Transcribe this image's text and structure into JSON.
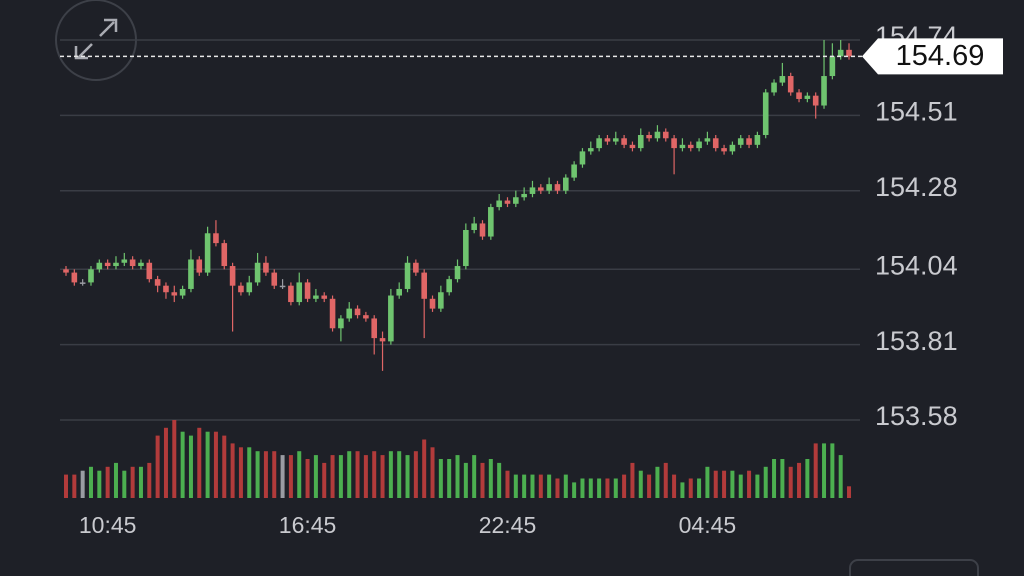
{
  "chart_data": {
    "type": "candlestick",
    "categories": [
      null,
      null,
      null,
      null,
      null,
      "10:45",
      null,
      null,
      null,
      null,
      null,
      null,
      null,
      null,
      null,
      null,
      null,
      null,
      null,
      null,
      null,
      null,
      null,
      null,
      null,
      null,
      null,
      null,
      null,
      "16:45",
      null,
      null,
      null,
      null,
      null,
      null,
      null,
      null,
      null,
      null,
      null,
      null,
      null,
      null,
      null,
      null,
      null,
      null,
      null,
      null,
      null,
      null,
      null,
      "22:45",
      null,
      null,
      null,
      null,
      null,
      null,
      null,
      null,
      null,
      null,
      null,
      null,
      null,
      null,
      null,
      null,
      null,
      null,
      null,
      null,
      null,
      null,
      null,
      "04:45",
      null,
      null,
      null,
      null,
      null,
      null,
      null,
      null,
      null,
      null,
      null,
      null,
      null,
      null,
      null,
      null,
      null
    ],
    "open": [
      154.04,
      154.03,
      154.0,
      154.0,
      154.04,
      154.06,
      154.05,
      154.06,
      154.07,
      154.05,
      154.06,
      154.01,
      153.99,
      153.97,
      153.96,
      153.98,
      154.07,
      154.03,
      154.15,
      154.12,
      154.05,
      153.99,
      153.97,
      154.0,
      154.06,
      154.03,
      153.99,
      153.99,
      153.94,
      154.0,
      153.95,
      153.96,
      153.95,
      153.86,
      153.89,
      153.92,
      153.9,
      153.89,
      153.83,
      153.82,
      153.96,
      153.98,
      154.06,
      154.03,
      153.95,
      153.92,
      153.97,
      154.01,
      154.05,
      154.16,
      154.18,
      154.14,
      154.23,
      154.25,
      154.24,
      154.26,
      154.27,
      154.29,
      154.28,
      154.3,
      154.28,
      154.32,
      154.36,
      154.4,
      154.41,
      154.44,
      154.43,
      154.44,
      154.42,
      154.41,
      154.45,
      154.44,
      154.46,
      154.44,
      154.41,
      154.42,
      154.41,
      154.43,
      154.44,
      154.41,
      154.4,
      154.42,
      154.44,
      154.42,
      154.45,
      154.58,
      154.61,
      154.63,
      154.58,
      154.56,
      154.57,
      154.54,
      154.63,
      154.69,
      154.71
    ],
    "high": [
      154.05,
      154.04,
      154.01,
      154.05,
      154.07,
      154.07,
      154.08,
      154.09,
      154.08,
      154.07,
      154.07,
      154.02,
      154.0,
      153.99,
      153.99,
      154.1,
      154.08,
      154.17,
      154.19,
      154.13,
      154.06,
      154.0,
      154.02,
      154.09,
      154.08,
      154.04,
      154.01,
      154.0,
      154.03,
      154.01,
      153.98,
      153.97,
      153.96,
      153.9,
      153.94,
      153.93,
      153.91,
      153.9,
      153.85,
      153.98,
      154.0,
      154.08,
      154.07,
      154.04,
      153.96,
      153.99,
      154.02,
      154.07,
      154.18,
      154.2,
      154.19,
      154.24,
      154.27,
      154.26,
      154.28,
      154.29,
      154.31,
      154.3,
      154.32,
      154.31,
      154.33,
      154.37,
      154.41,
      154.43,
      154.45,
      154.45,
      154.46,
      154.45,
      154.43,
      154.47,
      154.46,
      154.48,
      154.47,
      154.45,
      154.44,
      154.43,
      154.44,
      154.46,
      154.45,
      154.42,
      154.43,
      154.45,
      154.45,
      154.46,
      154.59,
      154.62,
      154.67,
      154.64,
      154.59,
      154.58,
      154.58,
      154.74,
      154.73,
      154.74,
      154.73
    ],
    "low": [
      154.02,
      153.99,
      153.99,
      153.99,
      154.03,
      154.04,
      154.04,
      154.05,
      154.04,
      154.04,
      154.0,
      153.97,
      153.95,
      153.94,
      153.95,
      153.97,
      154.02,
      154.02,
      154.11,
      154.04,
      153.85,
      153.96,
      153.96,
      153.99,
      154.02,
      153.98,
      153.98,
      153.93,
      153.93,
      153.94,
      153.94,
      153.94,
      153.85,
      153.82,
      153.88,
      153.89,
      153.88,
      153.78,
      153.73,
      153.81,
      153.95,
      153.97,
      154.02,
      153.83,
      153.91,
      153.91,
      153.96,
      154.0,
      154.04,
      154.15,
      154.13,
      154.13,
      154.22,
      154.23,
      154.23,
      154.25,
      154.26,
      154.27,
      154.27,
      154.27,
      154.27,
      154.31,
      154.35,
      154.39,
      154.4,
      154.42,
      154.42,
      154.41,
      154.4,
      154.4,
      154.43,
      154.43,
      154.43,
      154.33,
      154.4,
      154.4,
      154.4,
      154.42,
      154.4,
      154.39,
      154.39,
      154.41,
      154.41,
      154.41,
      154.44,
      154.57,
      154.6,
      154.57,
      154.55,
      154.55,
      154.5,
      154.53,
      154.62,
      154.68,
      154.68
    ],
    "close": [
      154.03,
      154.0,
      154.0,
      154.04,
      154.06,
      154.05,
      154.06,
      154.07,
      154.05,
      154.06,
      154.01,
      153.99,
      153.97,
      153.96,
      153.98,
      154.07,
      154.03,
      154.15,
      154.12,
      154.05,
      153.99,
      153.97,
      154.0,
      154.06,
      154.03,
      153.99,
      153.99,
      153.94,
      154.0,
      153.95,
      153.96,
      153.95,
      153.86,
      153.89,
      153.92,
      153.9,
      153.89,
      153.83,
      153.82,
      153.96,
      153.98,
      154.06,
      154.03,
      153.95,
      153.92,
      153.97,
      154.01,
      154.05,
      154.16,
      154.18,
      154.14,
      154.23,
      154.25,
      154.24,
      154.26,
      154.27,
      154.29,
      154.28,
      154.3,
      154.28,
      154.32,
      154.36,
      154.4,
      154.41,
      154.44,
      154.43,
      154.44,
      154.42,
      154.41,
      154.45,
      154.44,
      154.46,
      154.44,
      154.41,
      154.42,
      154.41,
      154.43,
      154.44,
      154.41,
      154.4,
      154.42,
      154.44,
      154.42,
      154.45,
      154.58,
      154.61,
      154.63,
      154.58,
      154.56,
      154.57,
      154.54,
      154.63,
      154.69,
      154.71,
      154.69
    ],
    "volume": [
      30,
      30,
      35,
      40,
      35,
      40,
      45,
      35,
      40,
      40,
      45,
      80,
      90,
      100,
      85,
      80,
      90,
      85,
      85,
      80,
      70,
      65,
      65,
      60,
      60,
      60,
      55,
      55,
      60,
      50,
      55,
      45,
      55,
      55,
      60,
      60,
      55,
      60,
      55,
      60,
      60,
      55,
      60,
      75,
      65,
      50,
      50,
      55,
      45,
      55,
      45,
      50,
      45,
      35,
      30,
      30,
      30,
      30,
      30,
      25,
      30,
      20,
      25,
      25,
      25,
      25,
      25,
      30,
      45,
      35,
      30,
      40,
      45,
      30,
      20,
      25,
      25,
      40,
      35,
      35,
      35,
      30,
      35,
      30,
      40,
      50,
      50,
      40,
      45,
      50,
      70,
      70,
      70,
      55,
      15
    ],
    "ylim": [
      153.58,
      154.74
    ],
    "yticks": [
      154.74,
      154.51,
      154.28,
      154.04,
      153.81,
      153.58
    ],
    "y2lim": [
      0,
      100
    ],
    "last_price": 154.69,
    "grid": true,
    "up_color": "#6fc46f",
    "down_color": "#e06666",
    "flat_color": "#9a9ca3"
  }
}
